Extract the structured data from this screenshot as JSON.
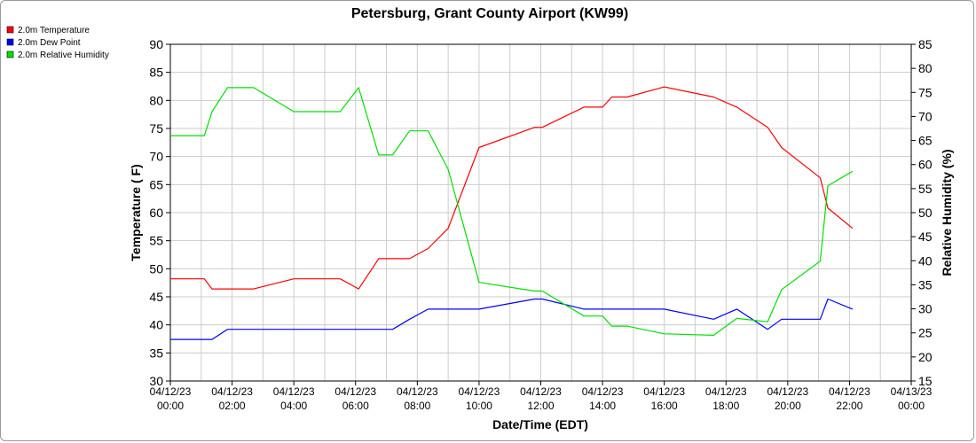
{
  "chart_data": {
    "type": "line",
    "title": "Petersburg, Grant County Airport (KW99)",
    "xlabel": "Date/Time (EDT)",
    "ylabel_left": "Temperature ( F)",
    "ylabel_right": "Relative Humidity (%)",
    "ylim_left": [
      30,
      90
    ],
    "ylim_right": [
      15,
      85
    ],
    "xlim_hours": [
      0,
      24
    ],
    "grid": true,
    "legend_placement": "top-left",
    "yticks_left": [
      "30",
      "35",
      "40",
      "45",
      "50",
      "55",
      "60",
      "65",
      "70",
      "75",
      "80",
      "85",
      "90"
    ],
    "yticks_right": [
      "15",
      "20",
      "25",
      "30",
      "35",
      "40",
      "45",
      "50",
      "55",
      "60",
      "65",
      "70",
      "75",
      "80",
      "85"
    ],
    "xticks": [
      {
        "hour": 0,
        "date": "04/12/23",
        "time": "00:00"
      },
      {
        "hour": 2,
        "date": "04/12/23",
        "time": "02:00"
      },
      {
        "hour": 4,
        "date": "04/12/23",
        "time": "04:00"
      },
      {
        "hour": 6,
        "date": "04/12/23",
        "time": "06:00"
      },
      {
        "hour": 8,
        "date": "04/12/23",
        "time": "08:00"
      },
      {
        "hour": 10,
        "date": "04/12/23",
        "time": "10:00"
      },
      {
        "hour": 12,
        "date": "04/12/23",
        "time": "12:00"
      },
      {
        "hour": 14,
        "date": "04/12/23",
        "time": "14:00"
      },
      {
        "hour": 16,
        "date": "04/12/23",
        "time": "16:00"
      },
      {
        "hour": 18,
        "date": "04/12/23",
        "time": "18:00"
      },
      {
        "hour": 20,
        "date": "04/12/23",
        "time": "20:00"
      },
      {
        "hour": 22,
        "date": "04/12/23",
        "time": "22:00"
      },
      {
        "hour": 24,
        "date": "04/13/23",
        "time": "00:00"
      }
    ],
    "series": [
      {
        "name": "2.0m Temperature",
        "color": "#ff0000",
        "axis": "left",
        "x": [
          0,
          1.1,
          1.35,
          2.7,
          4,
          5.5,
          6.1,
          6.75,
          7.75,
          8.35,
          9.0,
          10.0,
          11.8,
          12.05,
          13.4,
          14.0,
          14.3,
          14.8,
          16.0,
          17.6,
          18.35,
          19.35,
          19.8,
          21.05,
          21.3,
          22.1
        ],
        "values": [
          48.2,
          48.2,
          46.4,
          46.4,
          48.2,
          48.2,
          46.4,
          51.8,
          51.8,
          53.6,
          57.2,
          71.6,
          75.2,
          75.2,
          78.8,
          78.8,
          80.6,
          80.6,
          82.4,
          80.6,
          78.8,
          75.2,
          71.6,
          66.2,
          60.8,
          57.2
        ]
      },
      {
        "name": "2.0m Dew Point",
        "color": "#0000ff",
        "axis": "left",
        "x": [
          0,
          1.35,
          1.85,
          7.2,
          7.75,
          8.35,
          10.0,
          11.8,
          12.05,
          13.4,
          16.0,
          17.6,
          18.35,
          19.35,
          19.8,
          21.05,
          21.3,
          22.1
        ],
        "values": [
          37.4,
          37.4,
          39.2,
          39.2,
          41.0,
          42.8,
          42.8,
          44.6,
          44.6,
          42.8,
          42.8,
          41.0,
          42.8,
          39.2,
          41.0,
          41.0,
          44.6,
          42.8
        ]
      },
      {
        "name": "2.0m Relative Humidity",
        "color": "#00e000",
        "axis": "right",
        "x": [
          0,
          1.1,
          1.35,
          1.85,
          2.7,
          4,
          5.5,
          6.1,
          6.75,
          7.2,
          7.75,
          8.35,
          9.0,
          10.0,
          11.8,
          12.05,
          13.4,
          14.0,
          14.3,
          14.8,
          16.0,
          17.6,
          18.35,
          19.35,
          19.8,
          21.05,
          21.3,
          22.1
        ],
        "values": [
          66,
          66,
          71,
          76,
          76,
          71,
          71,
          76,
          62,
          62,
          67,
          67,
          59,
          35.5,
          33.7,
          33.7,
          28.5,
          28.5,
          26.4,
          26.4,
          24.8,
          24.5,
          28.0,
          27.3,
          34.0,
          39.9,
          55.6,
          58.6
        ]
      }
    ]
  }
}
